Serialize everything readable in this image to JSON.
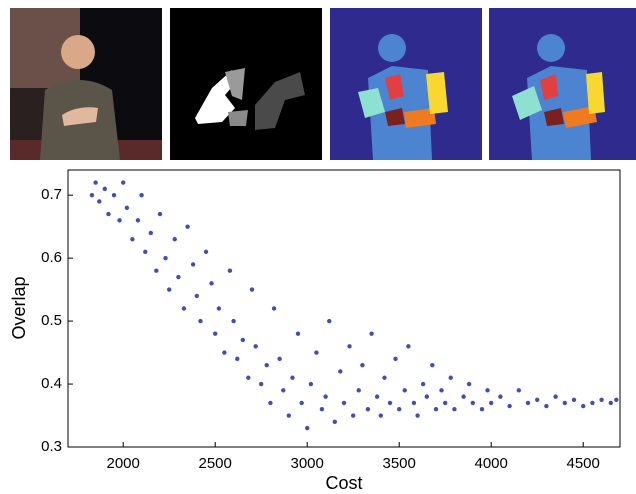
{
  "chart_data": {
    "type": "scatter",
    "xlabel": "Cost",
    "ylabel": "Overlap",
    "color": "#3f4fb8",
    "xlim": [
      1700,
      4700
    ],
    "ylim": [
      0.3,
      0.74
    ],
    "xticks": [
      2000,
      2500,
      3000,
      3500,
      4000,
      4500
    ],
    "yticks": [
      0.3,
      0.4,
      0.5,
      0.6,
      0.7
    ],
    "x": [
      1830,
      1850,
      1870,
      1900,
      1920,
      1950,
      1980,
      2000,
      2020,
      2050,
      2080,
      2100,
      2120,
      2150,
      2180,
      2200,
      2230,
      2250,
      2280,
      2300,
      2330,
      2350,
      2380,
      2400,
      2420,
      2450,
      2480,
      2500,
      2520,
      2550,
      2580,
      2600,
      2620,
      2650,
      2680,
      2700,
      2720,
      2750,
      2780,
      2800,
      2820,
      2850,
      2870,
      2900,
      2920,
      2950,
      2970,
      3000,
      3020,
      3050,
      3080,
      3100,
      3120,
      3150,
      3180,
      3200,
      3230,
      3250,
      3280,
      3300,
      3330,
      3350,
      3380,
      3400,
      3420,
      3450,
      3480,
      3500,
      3530,
      3550,
      3580,
      3600,
      3630,
      3650,
      3680,
      3700,
      3730,
      3750,
      3780,
      3800,
      3850,
      3880,
      3900,
      3950,
      3980,
      4000,
      4050,
      4100,
      4150,
      4200,
      4250,
      4300,
      4350,
      4400,
      4450,
      4500,
      4550,
      4600,
      4650,
      4680
    ],
    "y": [
      0.7,
      0.72,
      0.69,
      0.71,
      0.67,
      0.7,
      0.66,
      0.72,
      0.68,
      0.63,
      0.66,
      0.7,
      0.61,
      0.64,
      0.58,
      0.67,
      0.6,
      0.55,
      0.63,
      0.57,
      0.52,
      0.65,
      0.59,
      0.54,
      0.5,
      0.61,
      0.56,
      0.48,
      0.52,
      0.45,
      0.58,
      0.5,
      0.44,
      0.47,
      0.41,
      0.55,
      0.46,
      0.4,
      0.43,
      0.37,
      0.52,
      0.44,
      0.39,
      0.35,
      0.41,
      0.48,
      0.37,
      0.33,
      0.4,
      0.45,
      0.36,
      0.38,
      0.5,
      0.34,
      0.42,
      0.37,
      0.46,
      0.35,
      0.39,
      0.43,
      0.36,
      0.48,
      0.38,
      0.35,
      0.41,
      0.37,
      0.44,
      0.36,
      0.39,
      0.46,
      0.37,
      0.35,
      0.4,
      0.38,
      0.43,
      0.36,
      0.39,
      0.37,
      0.41,
      0.36,
      0.38,
      0.4,
      0.37,
      0.36,
      0.39,
      0.37,
      0.38,
      0.365,
      0.39,
      0.37,
      0.375,
      0.365,
      0.38,
      0.37,
      0.375,
      0.365,
      0.37,
      0.375,
      0.37,
      0.375
    ]
  }
}
